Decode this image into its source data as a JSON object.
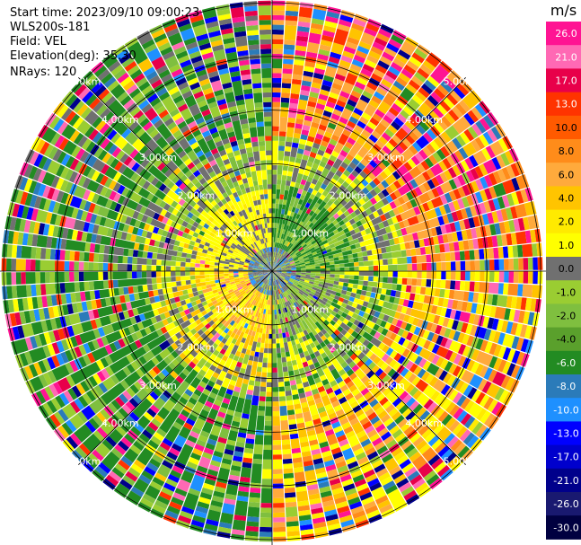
{
  "header": {
    "start_time": "Start time: 2023/09/10 09:00:23",
    "instrument": "WLS200s-181",
    "field": "Field: VEL",
    "elevation": "Elevation(deg): 35.30",
    "nrays": "NRays: 120"
  },
  "chart_data": {
    "type": "heatmap",
    "projection": "polar (PPI scan)",
    "field": "VEL",
    "colorbar_unit": "m/s",
    "colorbar_ticks": [
      "26.0",
      "21.0",
      "17.0",
      "13.0",
      "10.0",
      "8.0",
      "6.0",
      "4.0",
      "2.0",
      "1.0",
      "0.0",
      "-1.0",
      "-2.0",
      "-4.0",
      "-6.0",
      "-8.0",
      "-10.0",
      "-13.0",
      "-17.0",
      "-21.0",
      "-26.0",
      "-30.0"
    ],
    "colorbar_colors": [
      "#ff1493",
      "#ff69b4",
      "#e8004a",
      "#ff3300",
      "#ff5a00",
      "#ff8c1a",
      "#ffaa3c",
      "#ffc400",
      "#ffea00",
      "#ffff00",
      "#707070",
      "#9acd32",
      "#7fbf3f",
      "#5aa02c",
      "#228b22",
      "#2b7bb9",
      "#1e90ff",
      "#0000ff",
      "#0000cd",
      "#00008b",
      "#191970",
      "#000040"
    ],
    "range_ring_labels": [
      "1.00km",
      "2.00km",
      "3.00km",
      "4.00km",
      "5.00km"
    ],
    "range_rings_km": [
      1,
      2,
      3,
      4,
      5
    ],
    "max_range_km": 5.1,
    "nrays": 120,
    "sectors": [
      {
        "azimuth_from": 0,
        "azimuth_to": 90,
        "near_range": "green (-4 to -6 m/s)",
        "far_range": "orange / red / pink (6 to 21 m/s)"
      },
      {
        "azimuth_from": 90,
        "azimuth_to": 180,
        "near_range": "olive / grey (-1 to -2 m/s)",
        "far_range": "yellow / orange (2 to 8 m/s)"
      },
      {
        "azimuth_from": 180,
        "azimuth_to": 270,
        "near_range": "orange / yellow (2 to 6 m/s)",
        "far_range": "green (-4 to -6 m/s)"
      },
      {
        "azimuth_from": 270,
        "azimuth_to": 360,
        "near_range": "yellow / grey (0 to 2 m/s)",
        "far_range": "green / olive (-2 to -6 m/s)"
      }
    ]
  }
}
